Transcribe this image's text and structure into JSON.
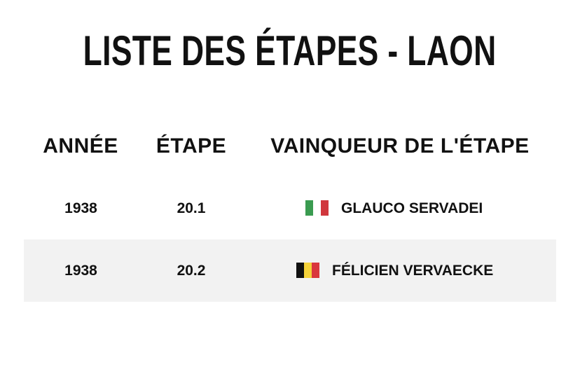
{
  "header": {
    "title": "LISTE DES ÉTAPES - LAON"
  },
  "table": {
    "columns": [
      "ANNÉE",
      "ÉTAPE",
      "VAINQUEUR DE L'ÉTAPE"
    ],
    "rows": [
      [
        1938,
        20.1,
        "GLAUCO SERVADEI"
      ],
      [
        1938,
        20.2,
        "FÉLICIEN VERVAECKE"
      ]
    ]
  }
}
